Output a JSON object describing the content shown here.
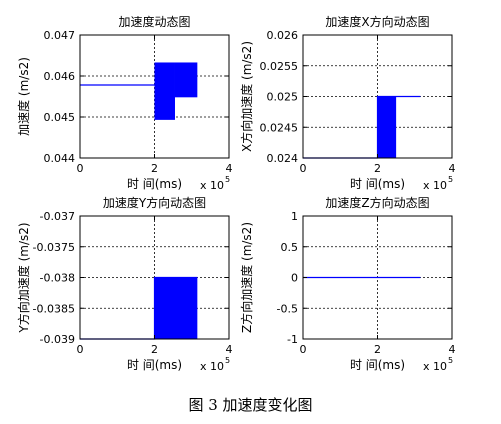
{
  "figure": {
    "caption": "图 3  加速度变化图"
  },
  "chart_data": [
    {
      "type": "area",
      "title": "加速度动态图",
      "xlabel": "时 间(ms)",
      "ylabel": "加速度 (m/s2)",
      "x_multiplier": "x 10",
      "x_multiplier_exp": "5",
      "xlim": [
        0,
        4
      ],
      "ylim": [
        0.044,
        0.047
      ],
      "xticks": [
        "0",
        "2",
        "4"
      ],
      "yticks": [
        "0.044",
        "0.045",
        "0.046",
        "0.047"
      ],
      "grid": true,
      "series": [
        {
          "color": "#0000ff",
          "line": [
            [
              0,
              0.04578
            ],
            [
              2.0,
              0.04578
            ]
          ],
          "filled_regions": [
            {
              "x": [
                2.0,
                2.55
              ],
              "y": [
                0.04493,
                0.04633
              ]
            },
            {
              "x": [
                2.55,
                3.15
              ],
              "y": [
                0.04548,
                0.04633
              ]
            }
          ]
        }
      ]
    },
    {
      "type": "area",
      "title": "加速度X方向动态图",
      "xlabel": "时 间(ms)",
      "ylabel": "X方向加速度 (m/s2)",
      "x_multiplier": "x 10",
      "x_multiplier_exp": "5",
      "xlim": [
        0,
        4
      ],
      "ylim": [
        0.024,
        0.026
      ],
      "xticks": [
        "0",
        "2",
        "4"
      ],
      "yticks": [
        "0.024",
        "0.0245",
        "0.025",
        "0.0255",
        "0.026"
      ],
      "grid": true,
      "series": [
        {
          "color": "#0000ff",
          "line": [
            [
              0,
              0.024
            ],
            [
              2.0,
              0.024
            ],
            [
              2.0,
              0.025
            ],
            [
              3.15,
              0.025
            ]
          ],
          "filled_regions": [
            {
              "x": [
                2.0,
                2.5
              ],
              "y": [
                0.024,
                0.025
              ]
            }
          ]
        }
      ]
    },
    {
      "type": "area",
      "title": "加速度Y方向动态图",
      "xlabel": "时 间(ms)",
      "ylabel": "Y方向加速度 (m/s2)",
      "x_multiplier": "x 10",
      "x_multiplier_exp": "5",
      "xlim": [
        0,
        4
      ],
      "ylim": [
        -0.039,
        -0.037
      ],
      "xticks": [
        "0",
        "2",
        "4"
      ],
      "yticks": [
        "-0.039",
        "-0.0385",
        "-0.038",
        "-0.0375",
        "-0.037"
      ],
      "grid": true,
      "series": [
        {
          "color": "#0000ff",
          "line": [
            [
              0,
              -0.039
            ],
            [
              2.0,
              -0.039
            ],
            [
              2.0,
              -0.038
            ],
            [
              3.15,
              -0.038
            ]
          ],
          "filled_regions": [
            {
              "x": [
                2.0,
                3.15
              ],
              "y": [
                -0.039,
                -0.038
              ]
            }
          ]
        }
      ]
    },
    {
      "type": "line",
      "title": "加速度Z方向动态图",
      "xlabel": "时 间(ms)",
      "ylabel": "Z方向加速度 (m/s2)",
      "x_multiplier": "x 10",
      "x_multiplier_exp": "5",
      "xlim": [
        0,
        4
      ],
      "ylim": [
        -1,
        1
      ],
      "xticks": [
        "0",
        "2",
        "4"
      ],
      "yticks": [
        "-1",
        "-0.5",
        "0",
        "0.5",
        "1"
      ],
      "grid": true,
      "series": [
        {
          "color": "#0000ff",
          "line": [
            [
              0,
              0
            ],
            [
              3.15,
              0
            ]
          ],
          "filled_regions": []
        }
      ]
    }
  ]
}
